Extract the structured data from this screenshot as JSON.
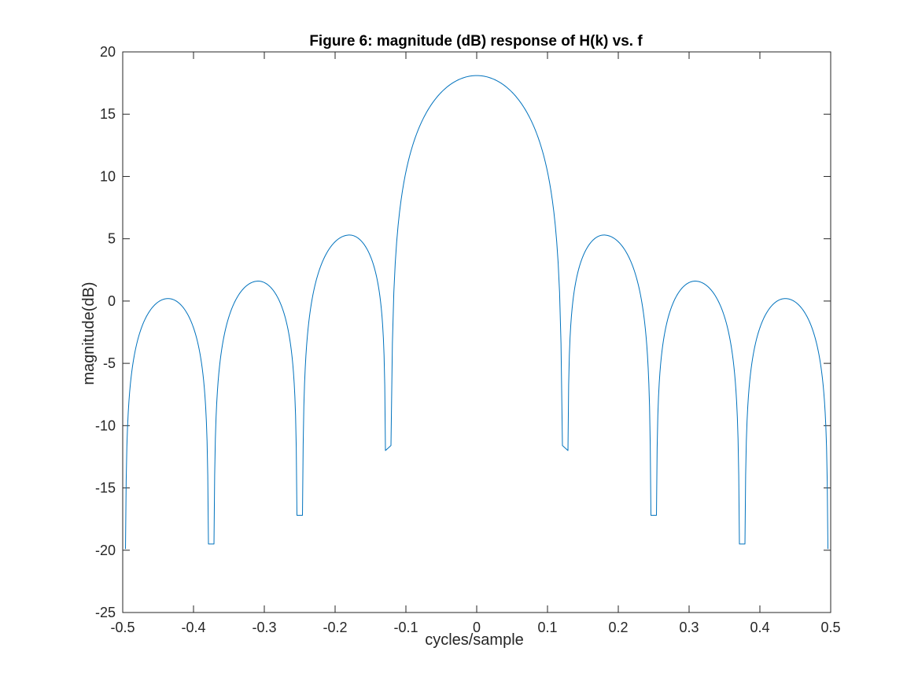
{
  "chart_data": {
    "type": "line",
    "title": "Figure 6: magnitude (dB) response of H(k) vs. f",
    "xlabel": "cycles/sample",
    "ylabel": "magnitude(dB)",
    "xlim": [
      -0.5,
      0.5
    ],
    "ylim": [
      -25,
      20
    ],
    "xticks": [
      -0.5,
      -0.4,
      -0.3,
      -0.2,
      -0.1,
      0,
      0.1,
      0.2,
      0.3,
      0.4,
      0.5
    ],
    "xtick_labels": [
      "-0.5",
      "-0.4",
      "-0.3",
      "-0.2",
      "-0.1",
      "0",
      "0.1",
      "0.2",
      "0.3",
      "0.4",
      "0.5"
    ],
    "yticks": [
      20,
      15,
      10,
      5,
      0,
      -5,
      -10,
      -15,
      -20,
      -25
    ],
    "ytick_labels": [
      "20",
      "15",
      "10",
      "5",
      "0",
      "-5",
      "-10",
      "-15",
      "-20",
      "-25"
    ],
    "grid": false,
    "line_color": "#0072BD",
    "series": [
      {
        "lobes": [
          {
            "x": [
              -0.4961,
              -0.4359,
              -0.3789
            ],
            "y": [
              -19.9,
              0.2,
              -19.5
            ]
          },
          {
            "x": [
              -0.3711,
              -0.3086,
              -0.2539
            ],
            "y": [
              -19.5,
              1.6,
              -17.2
            ]
          },
          {
            "x": [
              -0.2461,
              -0.1797,
              -0.1289
            ],
            "y": [
              -17.2,
              5.3,
              -12.0
            ]
          },
          {
            "x": [
              -0.1211,
              0.0,
              0.1211
            ],
            "y": [
              -11.6,
              18.1,
              -11.6
            ]
          },
          {
            "x": [
              0.1289,
              0.1797,
              0.2461
            ],
            "y": [
              -12.0,
              5.3,
              -17.2
            ]
          },
          {
            "x": [
              0.2539,
              0.3086,
              0.3711
            ],
            "y": [
              -17.2,
              1.6,
              -19.5
            ]
          },
          {
            "x": [
              0.3789,
              0.4359,
              0.4961
            ],
            "y": [
              -19.5,
              0.2,
              -19.9
            ]
          }
        ]
      }
    ]
  }
}
